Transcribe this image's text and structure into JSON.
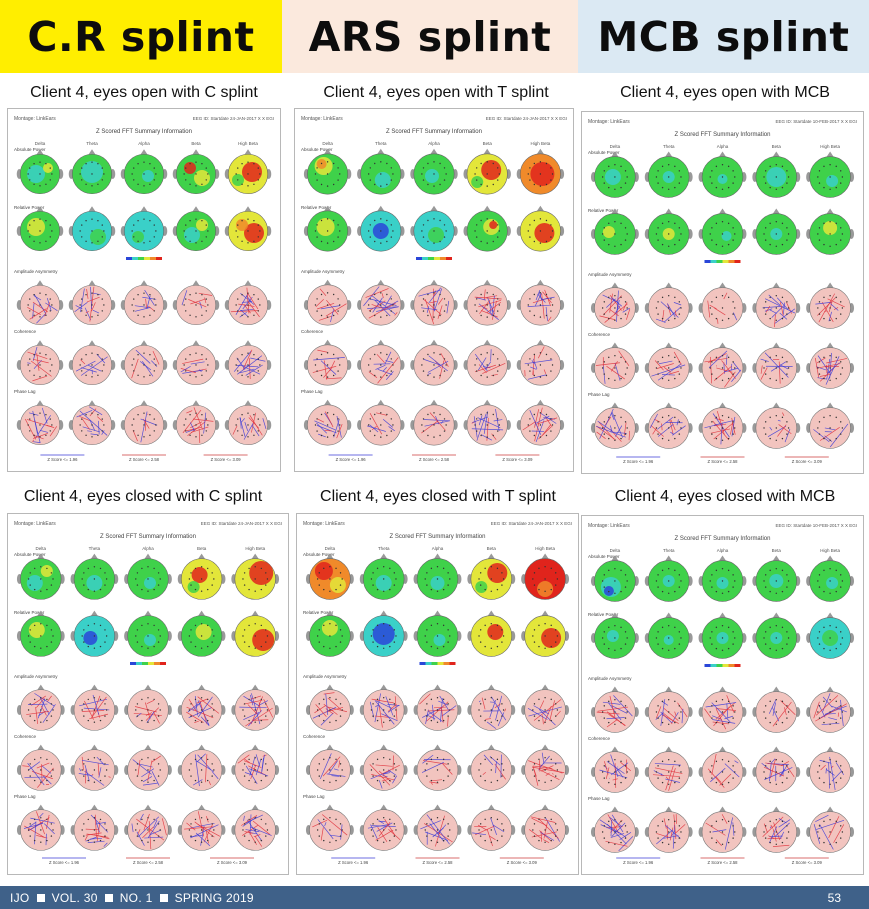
{
  "headers": [
    {
      "label": "C.R splint",
      "color": "#ffee00"
    },
    {
      "label": "ARS splint",
      "color": "#fbe9dd"
    },
    {
      "label": "MCB splint",
      "color": "#dbe9f3"
    }
  ],
  "captions": [
    "Client 4, eyes open with C splint",
    "Client 4, eyes open with T splint",
    "Client 4, eyes open with MCB",
    "Client 4, eyes closed with C splint",
    "Client 4, eyes closed with T splint",
    "Client 4, eyes closed with MCB"
  ],
  "panel": {
    "montage": "Montage: LinkEars",
    "title": "Z Scored FFT Summary Information",
    "bands": [
      "Delta",
      "Theta",
      "Alpha",
      "Beta",
      "High Beta"
    ],
    "sections": [
      "Absolute Power",
      "Relative Power",
      "Amplitude Asymmetry",
      "Coherence",
      "Phase Lag"
    ],
    "zscale": [
      "Z Score <= 1.96",
      "Z Score <= 2.58",
      "Z Score <= 3.09"
    ],
    "eeg_ids": [
      "EEG ID: Startdate 24-JAN-2017 X X EGI",
      "EEG ID: Startdate 24-JAN-2017 X X EGI",
      "EEG ID: Startdate 10-FEB-2017 X X EGI",
      "EEG ID: Startdate 24-JAN-2017 X X EGI",
      "EEG ID: Startdate 24-JAN-2017 X X EGI",
      "EEG ID: Startdate 10-FEB-2017 X X EGI"
    ]
  },
  "colors": {
    "green": "#3fd14a",
    "cyan": "#3ad0c8",
    "blue": "#2a46d8",
    "yellow": "#e3e63a",
    "orange": "#f08a2a",
    "red": "#e0241c",
    "pink": "#f2c4bf",
    "line_red": "#e0303a",
    "line_blue": "#3a3ad8"
  },
  "footer": {
    "journal": "IJO",
    "volume": "VOL. 30",
    "number": "NO. 1",
    "season": "SPRING 2019",
    "page": "53"
  }
}
